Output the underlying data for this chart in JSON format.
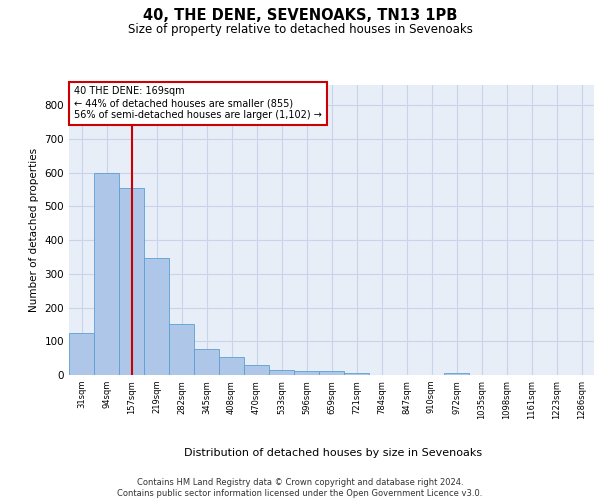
{
  "title": "40, THE DENE, SEVENOAKS, TN13 1PB",
  "subtitle": "Size of property relative to detached houses in Sevenoaks",
  "xlabel": "Distribution of detached houses by size in Sevenoaks",
  "ylabel": "Number of detached properties",
  "bar_labels": [
    "31sqm",
    "94sqm",
    "157sqm",
    "219sqm",
    "282sqm",
    "345sqm",
    "408sqm",
    "470sqm",
    "533sqm",
    "596sqm",
    "659sqm",
    "721sqm",
    "784sqm",
    "847sqm",
    "910sqm",
    "972sqm",
    "1035sqm",
    "1098sqm",
    "1161sqm",
    "1223sqm",
    "1286sqm"
  ],
  "bar_values": [
    125,
    600,
    555,
    348,
    150,
    77,
    52,
    30,
    14,
    13,
    13,
    7,
    0,
    0,
    0,
    7,
    0,
    0,
    0,
    0,
    0
  ],
  "bar_color": "#aec6e8",
  "bar_edge_color": "#5a9fd4",
  "grid_color": "#c8d4e8",
  "background_color": "#e8eef8",
  "vline_color": "#cc0000",
  "annotation_text": "40 THE DENE: 169sqm\n← 44% of detached houses are smaller (855)\n56% of semi-detached houses are larger (1,102) →",
  "annotation_box_color": "#ffffff",
  "annotation_box_edge": "#cc0000",
  "footer": "Contains HM Land Registry data © Crown copyright and database right 2024.\nContains public sector information licensed under the Open Government Licence v3.0.",
  "ylim": [
    0,
    860
  ],
  "yticks": [
    0,
    100,
    200,
    300,
    400,
    500,
    600,
    700,
    800
  ]
}
